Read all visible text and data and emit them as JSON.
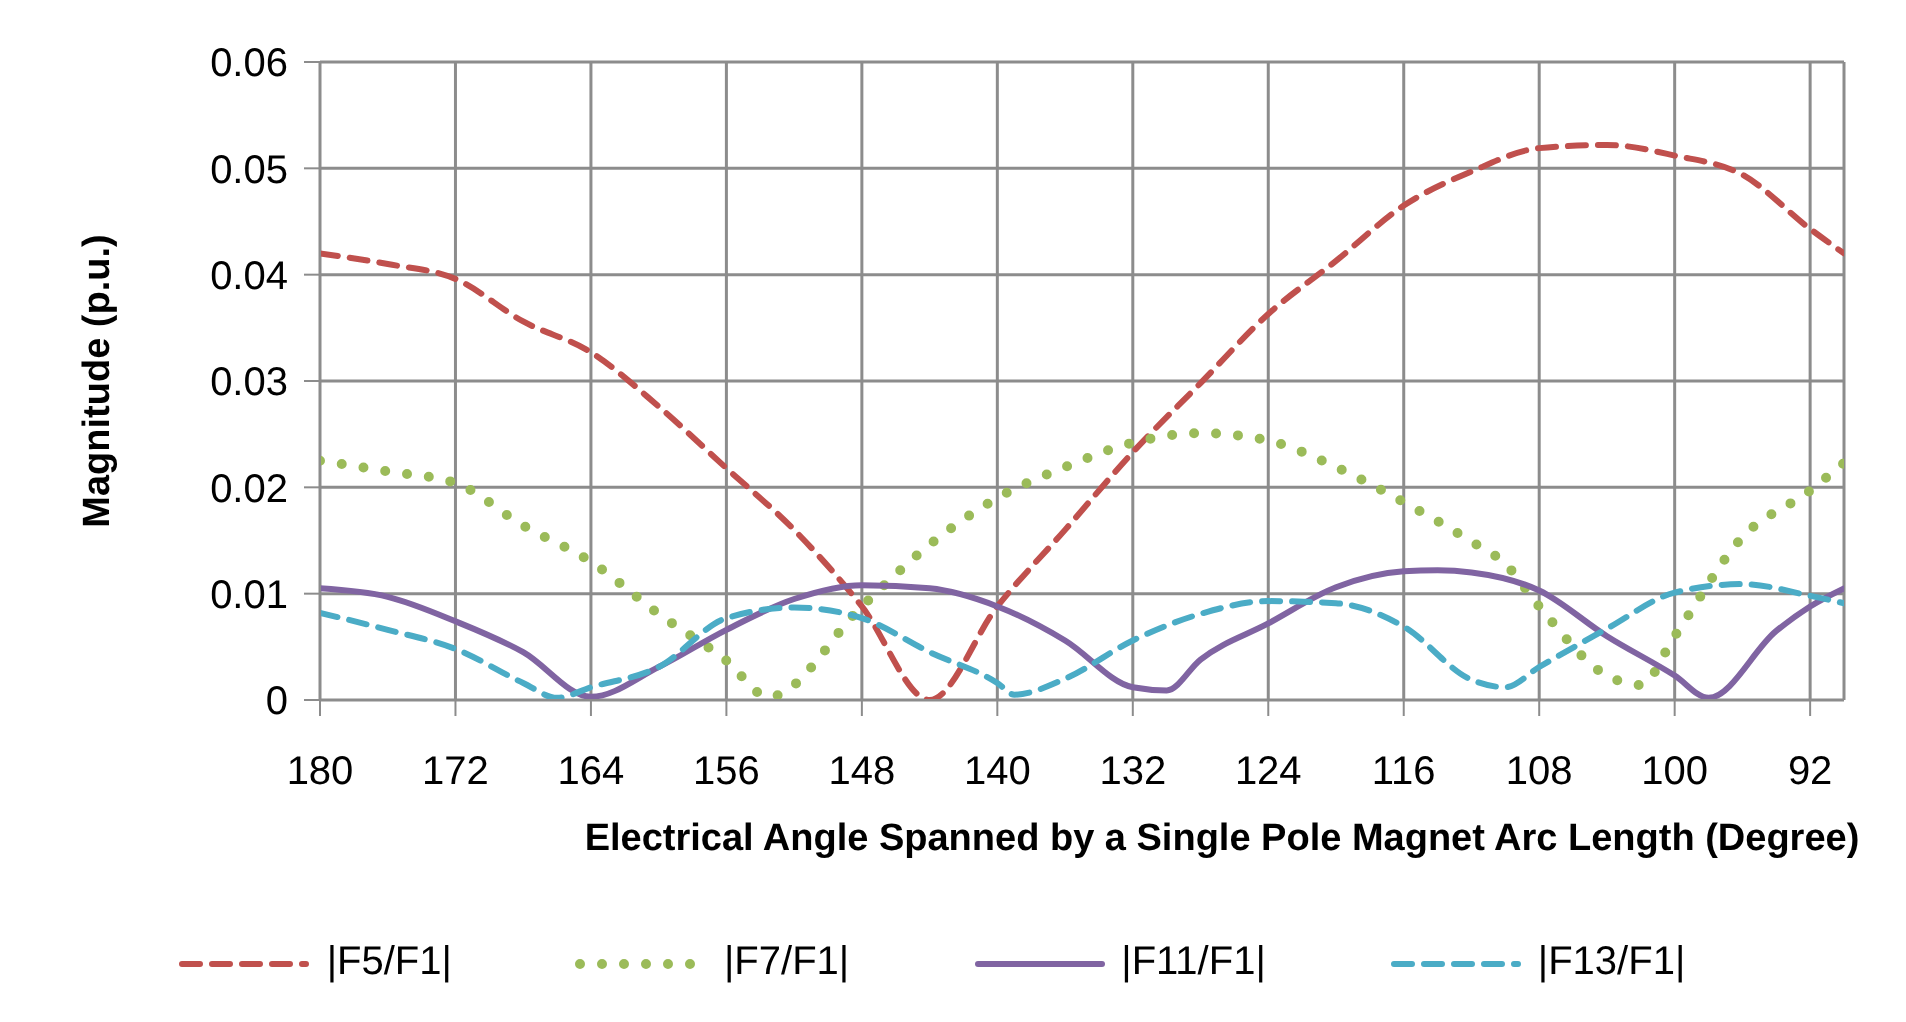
{
  "chart_data": {
    "type": "line",
    "xlabel": "Electrical Angle Spanned by a Single Pole Magnet Arc Length (Degree)",
    "ylabel": "Magnitude (p.u.)",
    "xlim": [
      180,
      90
    ],
    "xticks": [
      180,
      172,
      164,
      156,
      148,
      140,
      132,
      124,
      116,
      108,
      100,
      92
    ],
    "ylim": [
      0,
      0.06
    ],
    "yticks": [
      0,
      0.01,
      0.02,
      0.03,
      0.04,
      0.05,
      0.06
    ],
    "grid": true,
    "legend": "bottom",
    "marker": "none",
    "series": [
      {
        "name": "|F5/F1|",
        "color": "#c0504d",
        "line_style": "dashed",
        "x": [
          180,
          176,
          172,
          168,
          164,
          160,
          156,
          152,
          148,
          144,
          140,
          136,
          132,
          128,
          124,
          120,
          116,
          112,
          108,
          104,
          100,
          96,
          92,
          90
        ],
        "values": [
          0.042,
          0.041,
          0.0396,
          0.0356,
          0.0327,
          0.0276,
          0.0218,
          0.016,
          0.0088,
          0,
          0.0088,
          0.016,
          0.0233,
          0.0298,
          0.0363,
          0.0413,
          0.0465,
          0.0497,
          0.0519,
          0.0522,
          0.0512,
          0.0494,
          0.0443,
          0.042
        ]
      },
      {
        "name": "|F7/F1|",
        "color": "#9bbb59",
        "line_style": "dotted",
        "x": [
          180,
          176,
          172,
          168,
          164,
          160,
          156,
          153.5,
          148,
          144,
          140,
          136,
          132,
          128,
          124,
          120,
          116,
          112,
          110,
          108,
          104,
          102,
          100,
          96,
          92,
          90
        ],
        "values": [
          0.0225,
          0.0215,
          0.0204,
          0.0164,
          0.013,
          0.0081,
          0.0037,
          0.0003,
          0.0088,
          0.0146,
          0.019,
          0.0219,
          0.0242,
          0.0251,
          0.0244,
          0.0219,
          0.0186,
          0.0149,
          0.0128,
          0.0088,
          0.0023,
          0.0014,
          0.006,
          0.0153,
          0.0197,
          0.0223
        ]
      },
      {
        "name": "|F11/F1|",
        "color": "#8064a2",
        "line_style": "solid",
        "x": [
          180,
          176,
          172,
          168,
          164,
          160,
          156,
          152,
          148,
          144,
          140,
          136,
          132,
          130,
          128,
          124,
          120,
          116,
          114,
          112,
          108,
          104,
          100,
          98,
          94,
          92,
          90
        ],
        "values": [
          0.0105,
          0.0097,
          0.0074,
          0.0045,
          0.0003,
          0.0031,
          0.0066,
          0.0095,
          0.0108,
          0.0105,
          0.0088,
          0.0056,
          0.0012,
          0.0009,
          0.0038,
          0.0072,
          0.0106,
          0.0121,
          0.0122,
          0.012,
          0.0103,
          0.006,
          0.0023,
          0.0002,
          0.0065,
          0.0088,
          0.0105
        ]
      },
      {
        "name": "|F13/F1|",
        "color": "#4bacc6",
        "line_style": "dashed",
        "x": [
          180,
          176,
          172,
          168,
          166,
          164,
          160,
          156,
          152,
          148,
          144,
          140,
          139,
          136,
          132,
          128,
          124,
          120,
          116,
          112,
          110,
          108,
          104,
          100,
          96,
          92,
          90
        ],
        "values": [
          0.0082,
          0.0066,
          0.0048,
          0.0016,
          0.0002,
          0.0012,
          0.0031,
          0.0077,
          0.0087,
          0.0077,
          0.0045,
          0.0016,
          0.0005,
          0.002,
          0.0056,
          0.0081,
          0.0093,
          0.0091,
          0.0069,
          0.0019,
          0.0012,
          0.0031,
          0.0067,
          0.0101,
          0.0109,
          0.0098,
          0.0091
        ]
      }
    ]
  }
}
